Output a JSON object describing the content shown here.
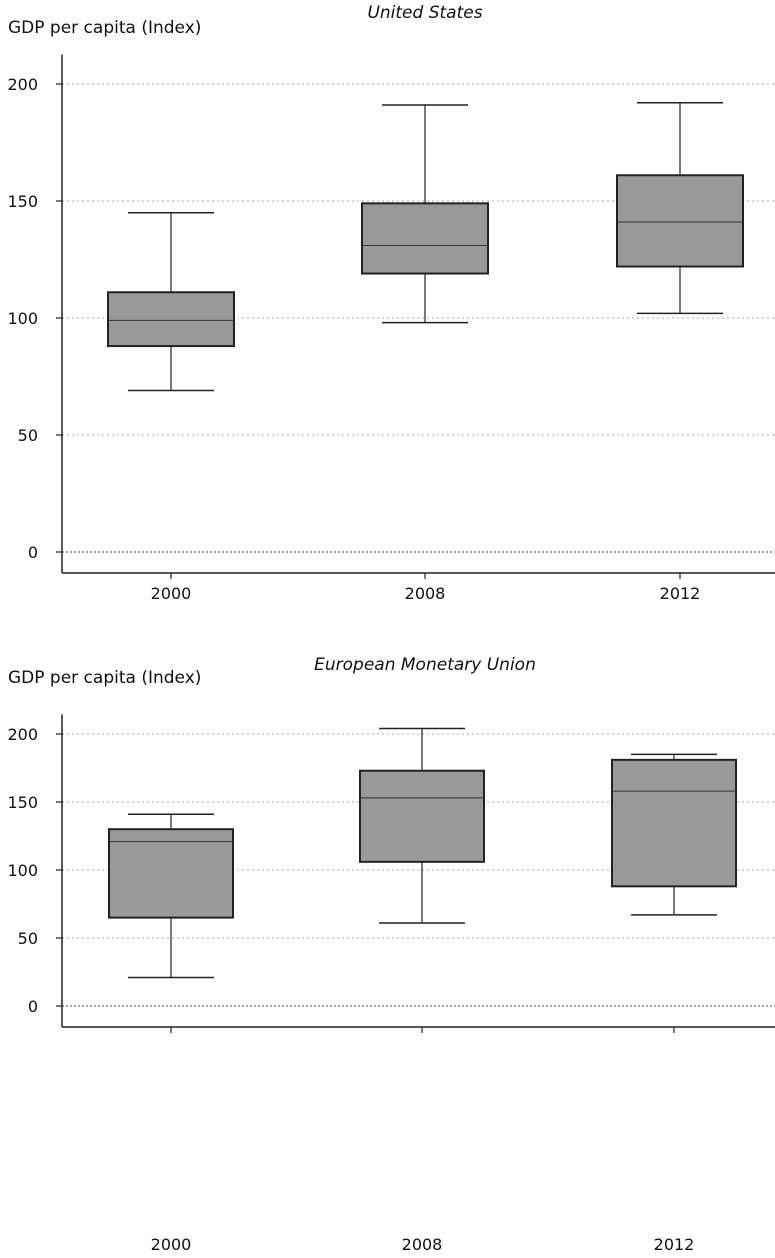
{
  "chart_data": [
    {
      "type": "box",
      "title": "United States",
      "ylabel": "GDP per capita (Index)",
      "xlabel": "",
      "ylim": [
        0,
        210
      ],
      "yticks": [
        0,
        50,
        100,
        150,
        200
      ],
      "categories": [
        "2000",
        "2008",
        "2012"
      ],
      "boxes": [
        {
          "category": "2000",
          "whisker_low": 69,
          "q1": 88,
          "median": 99,
          "q3": 111,
          "whisker_high": 145
        },
        {
          "category": "2008",
          "whisker_low": 98,
          "q1": 119,
          "median": 131,
          "q3": 149,
          "whisker_high": 191
        },
        {
          "category": "2012",
          "whisker_low": 102,
          "q1": 122,
          "median": 141,
          "q3": 161,
          "whisker_high": 192
        }
      ],
      "grid": true,
      "box_color": "#999999"
    },
    {
      "type": "box",
      "title": "European Monetary Union",
      "ylabel": "GDP per capita (Index)",
      "xlabel": "",
      "ylim": [
        0,
        210
      ],
      "yticks": [
        0,
        50,
        100,
        150,
        200
      ],
      "categories": [
        "2000",
        "2008",
        "2012"
      ],
      "boxes": [
        {
          "category": "2000",
          "whisker_low": 21,
          "q1": 65,
          "median": 121,
          "q3": 130,
          "whisker_high": 141
        },
        {
          "category": "2008",
          "whisker_low": 61,
          "q1": 106,
          "median": 153,
          "q3": 173,
          "whisker_high": 204
        },
        {
          "category": "2012",
          "whisker_low": 67,
          "q1": 88,
          "median": 158,
          "q3": 181,
          "whisker_high": 185
        }
      ],
      "grid": true,
      "box_color": "#999999"
    }
  ]
}
